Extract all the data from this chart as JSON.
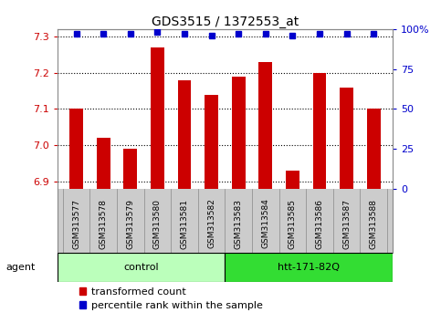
{
  "title": "GDS3515 / 1372553_at",
  "samples": [
    "GSM313577",
    "GSM313578",
    "GSM313579",
    "GSM313580",
    "GSM313581",
    "GSM313582",
    "GSM313583",
    "GSM313584",
    "GSM313585",
    "GSM313586",
    "GSM313587",
    "GSM313588"
  ],
  "transformed_count": [
    7.1,
    7.02,
    6.99,
    7.27,
    7.18,
    7.14,
    7.19,
    7.23,
    6.93,
    7.2,
    7.16,
    7.1
  ],
  "percentile_rank": [
    97,
    97,
    97,
    98,
    97,
    96,
    97,
    97,
    96,
    97,
    97,
    97
  ],
  "ylim_left": [
    6.88,
    7.32
  ],
  "ylim_right": [
    0,
    100
  ],
  "yticks_left": [
    6.9,
    7.0,
    7.1,
    7.2,
    7.3
  ],
  "yticks_right": [
    0,
    25,
    50,
    75,
    100
  ],
  "ytick_labels_right": [
    "0",
    "25",
    "50",
    "75",
    "100%"
  ],
  "bar_color": "#cc0000",
  "dot_color": "#0000cc",
  "groups": [
    {
      "label": "control",
      "start": 0,
      "end": 5,
      "color": "#bbffbb"
    },
    {
      "label": "htt-171-82Q",
      "start": 6,
      "end": 11,
      "color": "#33dd33"
    }
  ],
  "legend_bar_label": "transformed count",
  "legend_dot_label": "percentile rank within the sample",
  "agent_label": "agent",
  "bg_color": "#ffffff",
  "tick_label_color_left": "#cc0000",
  "tick_label_color_right": "#0000cc",
  "sample_box_color": "#cccccc",
  "border_color": "#888888"
}
